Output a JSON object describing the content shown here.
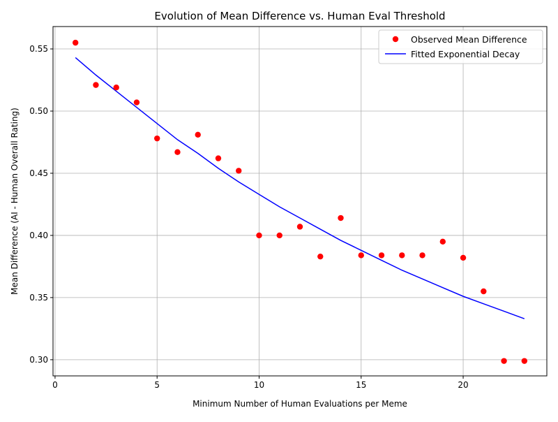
{
  "chart_data": {
    "type": "scatter",
    "title": "Evolution of Mean Difference vs. Human Eval Threshold",
    "xlabel": "Minimum Number of Human Evaluations per Meme",
    "ylabel": "Mean Difference (AI - Human Overall Rating)",
    "xlim": [
      -0.1,
      24.1
    ],
    "ylim": [
      0.287,
      0.568
    ],
    "xticks": [
      0,
      5,
      10,
      15,
      20
    ],
    "xtick_labels": [
      "0",
      "5",
      "10",
      "15",
      "20"
    ],
    "yticks": [
      0.3,
      0.35,
      0.4,
      0.45,
      0.5,
      0.55
    ],
    "ytick_labels": [
      "0.30",
      "0.35",
      "0.40",
      "0.45",
      "0.50",
      "0.55"
    ],
    "grid": true,
    "legend_position": "top-right",
    "series": [
      {
        "name": "Observed Mean Difference",
        "kind": "markers",
        "color": "#ff0000",
        "x": [
          1,
          2,
          3,
          4,
          5,
          6,
          7,
          8,
          9,
          10,
          11,
          12,
          13,
          14,
          15,
          16,
          17,
          18,
          19,
          20,
          21,
          22,
          23
        ],
        "y": [
          0.555,
          0.521,
          0.519,
          0.507,
          0.478,
          0.467,
          0.481,
          0.462,
          0.452,
          0.4,
          0.4,
          0.407,
          0.383,
          0.414,
          0.384,
          0.384,
          0.384,
          0.384,
          0.395,
          0.382,
          0.355,
          0.299,
          0.299
        ]
      },
      {
        "name": "Fitted Exponential Decay",
        "kind": "line",
        "color": "#0000ff",
        "x": [
          1,
          2,
          3,
          4,
          5,
          6,
          7,
          8,
          9,
          10,
          11,
          12,
          13,
          14,
          15,
          16,
          17,
          18,
          19,
          20,
          21,
          22,
          23
        ],
        "y": [
          0.543,
          0.529,
          0.516,
          0.503,
          0.49,
          0.477,
          0.466,
          0.454,
          0.443,
          0.433,
          0.423,
          0.414,
          0.405,
          0.396,
          0.388,
          0.38,
          0.372,
          0.365,
          0.358,
          0.351,
          0.345,
          0.339,
          0.333
        ]
      }
    ]
  }
}
